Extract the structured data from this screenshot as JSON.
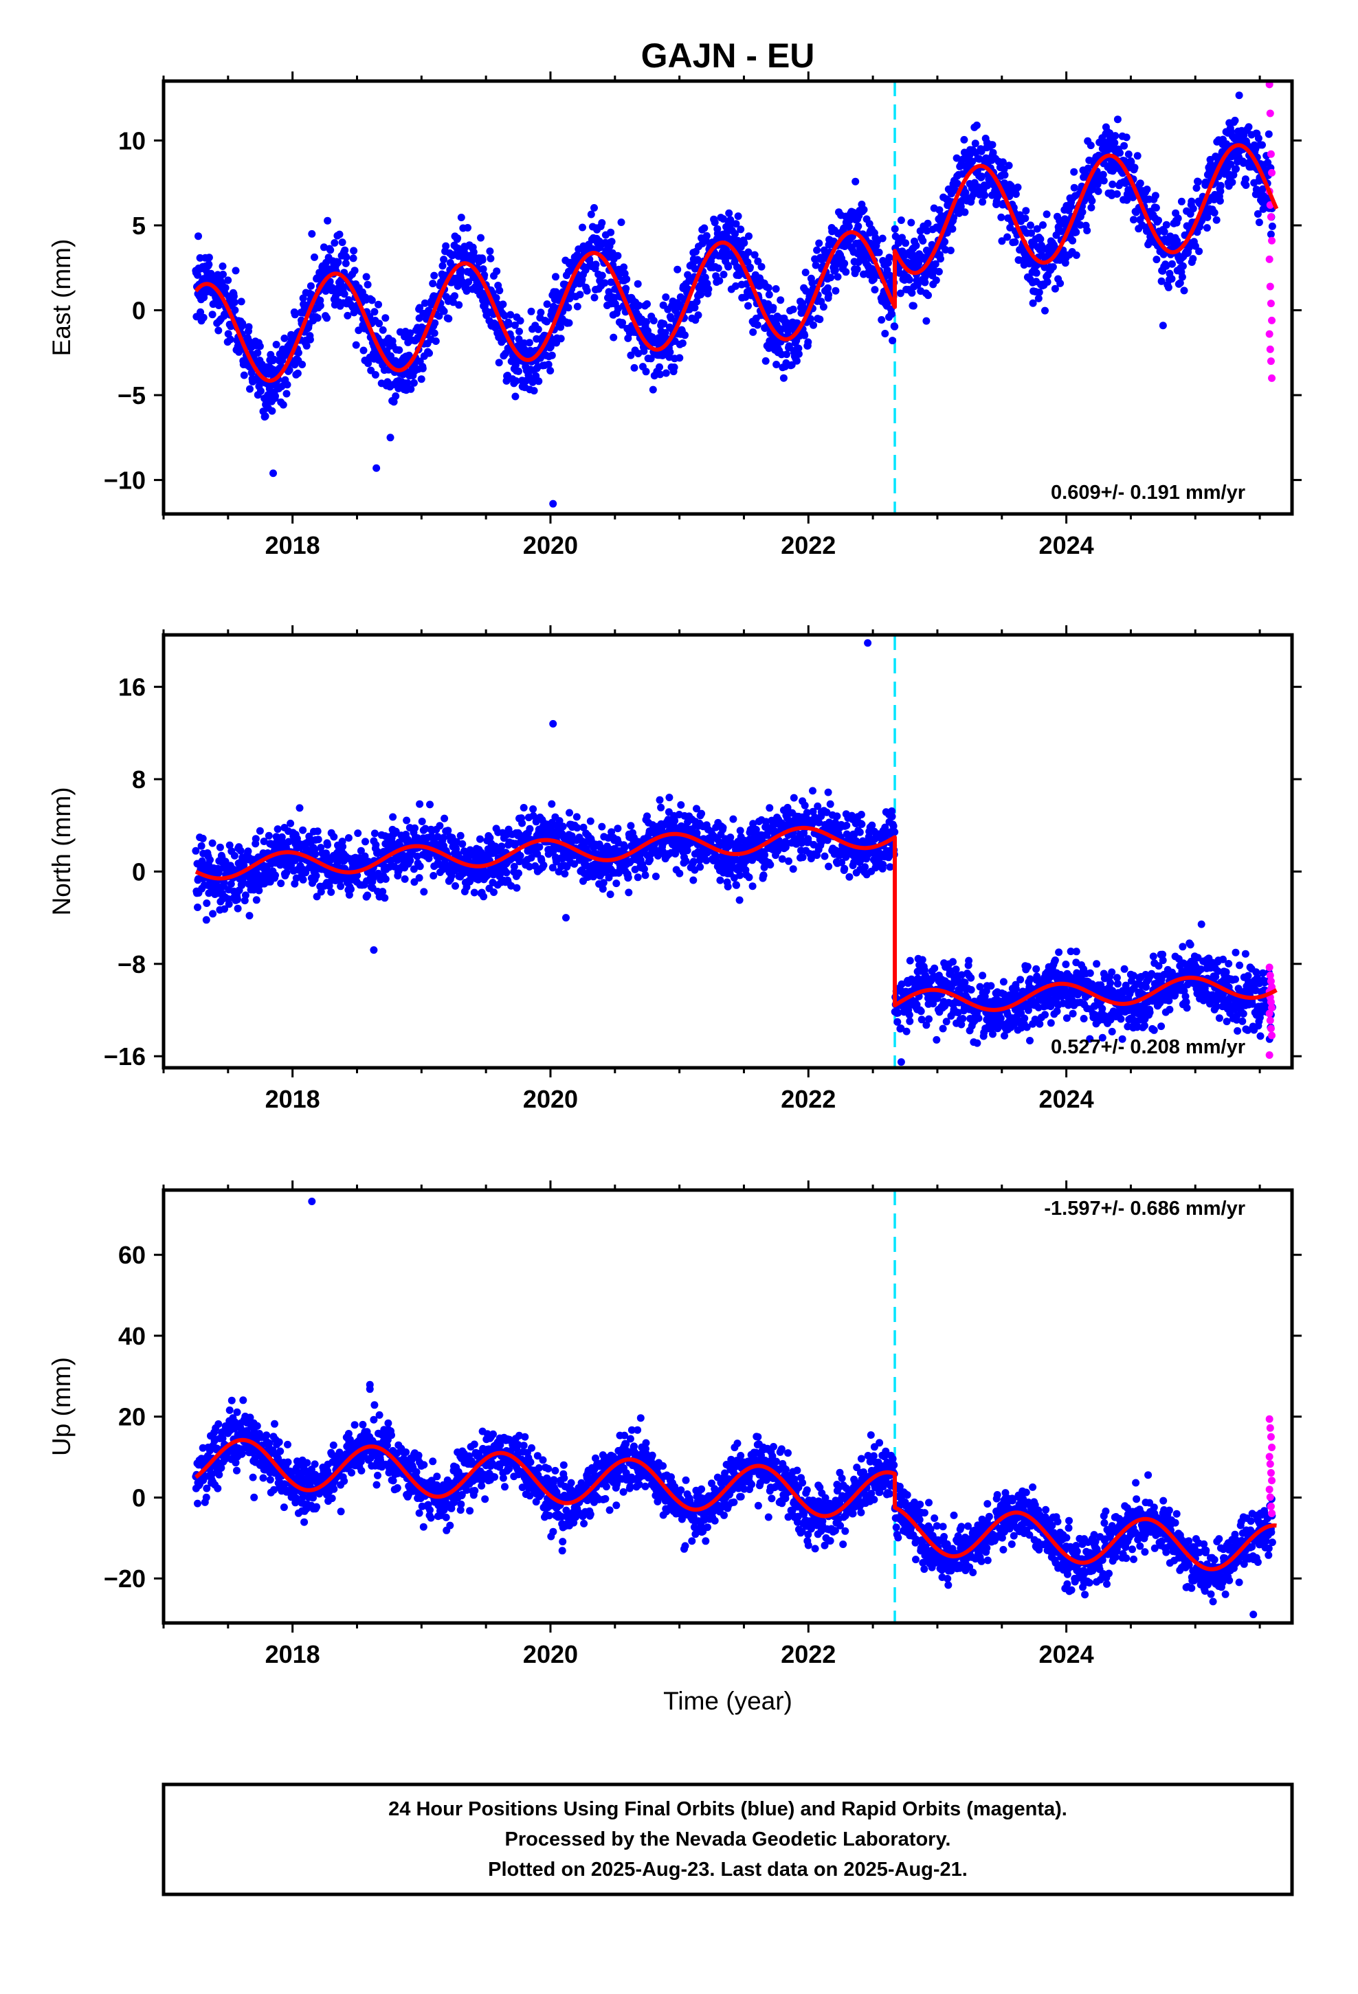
{
  "title": "GAJN - EU",
  "xlabel": "Time (year)",
  "colors": {
    "final": "#0000ff",
    "rapid": "#ff00ff",
    "model": "#ff0000",
    "offset": "#00e5ff",
    "frame": "#000000"
  },
  "footer": {
    "line1": "24 Hour Positions Using Final Orbits (blue) and Rapid Orbits (magenta).",
    "line2": "Processed by the Nevada Geodetic Laboratory.",
    "line3": "Plotted on 2025-Aug-23. Last data on 2025-Aug-21."
  },
  "chart_data": [
    {
      "type": "scatter",
      "component": "east",
      "ylabel": "East (mm)",
      "rate_text": "0.609+/- 0.191 mm/yr",
      "xlim": [
        2017.0,
        2025.75
      ],
      "ylim": [
        -12,
        13.5
      ],
      "x_ticks": [
        2018,
        2020,
        2022,
        2024
      ],
      "x_tick_labels": [
        "2018",
        "2020",
        "2022",
        "2024"
      ],
      "y_ticks": [
        -10,
        -5,
        0,
        5,
        10
      ],
      "y_tick_labels": [
        "−10",
        "−5",
        "0",
        "5",
        "10"
      ],
      "data_start": 2017.25,
      "data_end": 2025.63,
      "offset_epoch": 2022.67,
      "model": {
        "base_before": -1.5,
        "base_after": 5.1,
        "rate": 0.609,
        "amplitude": 3.0,
        "phase_peak": 0.33,
        "scatter": 1.1
      },
      "rapid_values": [
        13.3,
        11.6,
        9.2,
        8.1,
        7.0,
        6.2,
        5.5,
        4.1,
        3.0,
        1.4,
        0.4,
        -0.6,
        -1.4,
        -2.3,
        -3.0,
        -4.0
      ],
      "outliers": [
        [
          2020.02,
          -11.4
        ],
        [
          2024.75,
          -0.9
        ],
        [
          2018.15,
          4.5
        ],
        [
          2017.85,
          -9.6
        ],
        [
          2018.65,
          -9.3
        ]
      ]
    },
    {
      "type": "scatter",
      "component": "north",
      "ylabel": "North (mm)",
      "rate_text": "0.527+/- 0.208 mm/yr",
      "xlim": [
        2017.0,
        2025.75
      ],
      "ylim": [
        -17,
        20.5
      ],
      "x_ticks": [
        2018,
        2020,
        2022,
        2024
      ],
      "x_tick_labels": [
        "2018",
        "2020",
        "2022",
        "2024"
      ],
      "y_ticks": [
        -16,
        -8,
        0,
        8,
        16
      ],
      "y_tick_labels": [
        "−16",
        "−8",
        "0",
        "8",
        "16"
      ],
      "data_start": 2017.25,
      "data_end": 2025.63,
      "offset_epoch": 2022.67,
      "model": {
        "base_before": 0.3,
        "base_after": -11.4,
        "rate": 0.527,
        "amplitude": 1.0,
        "phase_peak": 0.95,
        "scatter": 1.3
      },
      "rapid_values": [
        -8.3,
        -9.0,
        -9.5,
        -10.0,
        -10.4,
        -10.9,
        -11.3,
        -11.8,
        -12.3,
        -12.9,
        -13.6,
        -14.2,
        -15.9
      ],
      "outliers": [
        [
          2022.46,
          19.8
        ],
        [
          2020.02,
          12.8
        ],
        [
          2020.12,
          -4.0
        ],
        [
          2018.63,
          -6.8
        ],
        [
          2022.72,
          -16.5
        ]
      ]
    },
    {
      "type": "scatter",
      "component": "up",
      "ylabel": "Up (mm)",
      "rate_text": "-1.597+/- 0.686 mm/yr",
      "xlim": [
        2017.0,
        2025.75
      ],
      "ylim": [
        -31,
        76
      ],
      "x_ticks": [
        2018,
        2020,
        2022,
        2024
      ],
      "x_tick_labels": [
        "2018",
        "2020",
        "2022",
        "2024"
      ],
      "y_ticks": [
        -20,
        0,
        20,
        40,
        60
      ],
      "y_tick_labels": [
        "−20",
        "0",
        "20",
        "40",
        "60"
      ],
      "data_start": 2017.25,
      "data_end": 2025.63,
      "offset_epoch": 2022.67,
      "model": {
        "base_before": 9.0,
        "base_after": -8.0,
        "rate": -1.597,
        "amplitude": 5.8,
        "phase_peak": 0.62,
        "scatter": 3.4
      },
      "rapid_values": [
        19.4,
        17.2,
        15.0,
        12.4,
        10.1,
        8.3,
        6.1,
        4.2,
        2.0,
        0.1,
        -2.2,
        -3.9
      ],
      "outliers": [
        [
          2018.15,
          73.2
        ],
        [
          2018.6,
          27.9
        ],
        [
          2018.6,
          26.8
        ],
        [
          2025.45,
          -28.9
        ]
      ]
    }
  ]
}
